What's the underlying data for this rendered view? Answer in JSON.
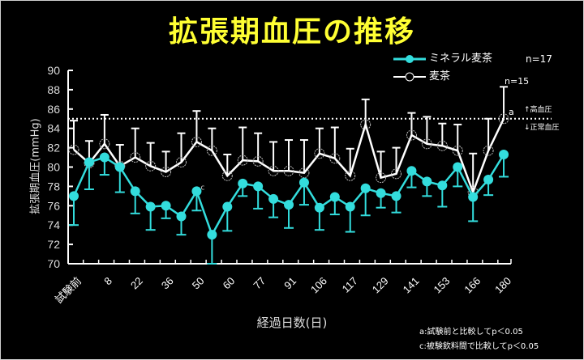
{
  "title": "拡張期血圧の推移",
  "legend": {
    "series1": {
      "label": "ミネラル麦茶",
      "n": "n=17",
      "color": "#33dddd"
    },
    "series2": {
      "label": "麦茶",
      "n": "n=15",
      "color": "#ffffff"
    }
  },
  "threshold": {
    "value": 85,
    "above_label": "↑高血圧",
    "below_label": "↓正常血圧"
  },
  "annotations": {
    "a_mark": "a",
    "c_mark": "c"
  },
  "footnotes": [
    "a:試験前と比較してp＜0.05",
    "c:被験飲料間で比較してp＜0.05"
  ],
  "chart_data": {
    "type": "line",
    "title": "拡張期血圧の推移",
    "xlabel": "経過日数(日)",
    "ylabel": "拡張期血圧(mmHg)",
    "ylim": [
      70,
      90
    ],
    "yticks": [
      70,
      72,
      74,
      76,
      78,
      80,
      82,
      84,
      86,
      88,
      90
    ],
    "x_tick_labels": [
      "試験前",
      "8",
      "22",
      "36",
      "50",
      "60",
      "77",
      "91",
      "106",
      "117",
      "129",
      "141",
      "153",
      "166",
      "180"
    ],
    "grid": false,
    "legend_position": "top-right",
    "reference_line": {
      "y": 85,
      "style": "dotted"
    },
    "series": [
      {
        "name": "ミネラル麦茶",
        "n": 17,
        "marker": "filled-circle",
        "color": "#33dddd",
        "values": [
          77.0,
          80.5,
          81.0,
          80.0,
          77.5,
          75.9,
          76.0,
          74.9,
          77.5,
          73.0,
          75.9,
          78.3,
          78.0,
          76.7,
          76.1,
          78.4,
          75.8,
          76.9,
          75.9,
          77.8,
          77.3,
          77.0,
          79.6,
          78.5,
          78.1,
          80.0,
          76.9,
          78.7,
          81.3
        ],
        "err_low": [
          3.0,
          2.8,
          1.8,
          2.6,
          2.3,
          2.4,
          1.3,
          1.9,
          2.0,
          3.0,
          2.5,
          1.3,
          2.3,
          1.9,
          2.4,
          2.3,
          2.3,
          1.8,
          2.6,
          2.8,
          1.5,
          1.7,
          1.7,
          1.5,
          2.2,
          2.0,
          2.5,
          1.6,
          2.3
        ]
      },
      {
        "name": "麦茶",
        "n": 15,
        "marker": "open-circle",
        "color": "#ffffff",
        "values": [
          81.8,
          80.4,
          82.4,
          80.1,
          81.0,
          80.1,
          79.5,
          80.5,
          82.6,
          81.7,
          79.1,
          80.7,
          80.6,
          79.6,
          79.6,
          79.4,
          81.4,
          80.9,
          79.1,
          84.4,
          78.9,
          79.3,
          83.3,
          82.4,
          82.2,
          81.7,
          77.4,
          81.7,
          85.0
        ],
        "err_high": [
          3.0,
          2.3,
          3.0,
          2.2,
          3.0,
          2.4,
          2.1,
          3.0,
          3.2,
          2.3,
          2.2,
          3.4,
          2.9,
          3.0,
          3.2,
          3.4,
          2.6,
          3.2,
          2.8,
          2.6,
          2.7,
          2.7,
          2.3,
          2.8,
          2.3,
          2.7,
          4.0,
          3.3,
          3.3
        ]
      }
    ]
  }
}
